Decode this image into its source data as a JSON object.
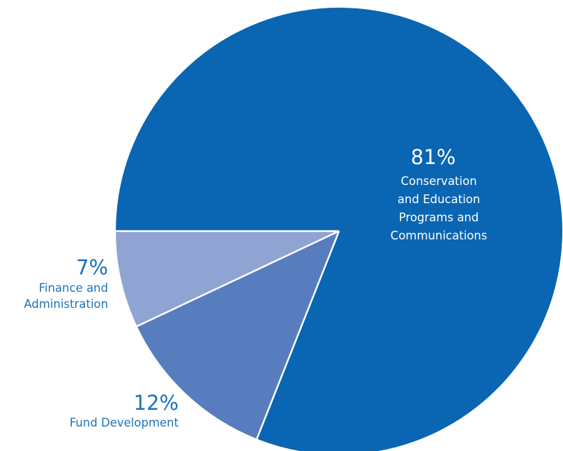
{
  "chart_data": {
    "type": "pie",
    "title": "",
    "slices": [
      {
        "percent_label": "81%",
        "value": 81,
        "label_lines": [
          "Conservation",
          "and Education",
          "Programs and",
          "Communications"
        ],
        "color": "#0A65B2",
        "label_text_color": "#ffffff"
      },
      {
        "percent_label": "12%",
        "value": 12,
        "label_lines": [
          "Fund Development"
        ],
        "color": "#577DBE",
        "label_text_color": "#1A73BB"
      },
      {
        "percent_label": "7%",
        "value": 7,
        "label_lines": [
          "Finance and",
          "Administration"
        ],
        "color": "#90A4D3",
        "label_text_color": "#1A73BB"
      }
    ],
    "start_angle_deg": 180,
    "direction": "clockwise",
    "separator_color": "#ffffff"
  }
}
